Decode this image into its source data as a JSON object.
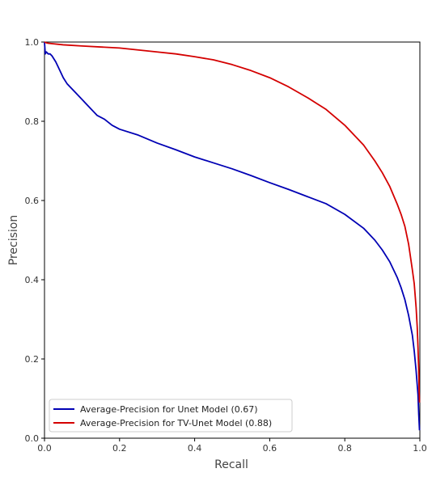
{
  "chart_data": {
    "type": "line",
    "title": "",
    "xlabel": "Recall",
    "ylabel": "Precision",
    "xlim": [
      0,
      1
    ],
    "ylim": [
      0,
      1
    ],
    "grid": false,
    "legend_position": "bottom-left",
    "xticks": [
      "0.0",
      "0.2",
      "0.4",
      "0.6",
      "0.8",
      "1.0"
    ],
    "yticks": [
      "0.0",
      "0.2",
      "0.4",
      "0.6",
      "0.8",
      "1.0"
    ],
    "series": [
      {
        "name": "Average-Precision for Unet Model (0.67)",
        "color": "#0000b4",
        "x": [
          0.0,
          0.002,
          0.005,
          0.01,
          0.015,
          0.02,
          0.03,
          0.04,
          0.05,
          0.06,
          0.08,
          0.1,
          0.12,
          0.14,
          0.16,
          0.18,
          0.2,
          0.25,
          0.3,
          0.35,
          0.4,
          0.45,
          0.5,
          0.55,
          0.6,
          0.65,
          0.7,
          0.75,
          0.8,
          0.85,
          0.88,
          0.9,
          0.92,
          0.94,
          0.95,
          0.96,
          0.97,
          0.98,
          0.985,
          0.99,
          0.995,
          0.997,
          0.999
        ],
        "y": [
          1.0,
          0.97,
          0.975,
          0.97,
          0.97,
          0.965,
          0.95,
          0.93,
          0.91,
          0.895,
          0.875,
          0.855,
          0.835,
          0.815,
          0.805,
          0.79,
          0.78,
          0.765,
          0.745,
          0.728,
          0.71,
          0.695,
          0.68,
          0.663,
          0.645,
          0.628,
          0.61,
          0.592,
          0.565,
          0.53,
          0.5,
          0.475,
          0.445,
          0.405,
          0.38,
          0.35,
          0.31,
          0.26,
          0.22,
          0.17,
          0.11,
          0.06,
          0.02
        ]
      },
      {
        "name": "Average-Precision for TV-Unet Model (0.88)",
        "color": "#d40000",
        "x": [
          0.0,
          0.005,
          0.01,
          0.05,
          0.1,
          0.2,
          0.3,
          0.35,
          0.4,
          0.45,
          0.5,
          0.55,
          0.6,
          0.65,
          0.7,
          0.75,
          0.8,
          0.85,
          0.88,
          0.9,
          0.92,
          0.94,
          0.95,
          0.96,
          0.97,
          0.98,
          0.985,
          0.99,
          0.993,
          0.995,
          0.997,
          0.998,
          0.999
        ],
        "y": [
          1.0,
          0.998,
          0.997,
          0.993,
          0.99,
          0.985,
          0.975,
          0.97,
          0.963,
          0.955,
          0.943,
          0.928,
          0.91,
          0.887,
          0.86,
          0.83,
          0.79,
          0.74,
          0.7,
          0.67,
          0.635,
          0.59,
          0.565,
          0.535,
          0.49,
          0.425,
          0.39,
          0.33,
          0.28,
          0.23,
          0.17,
          0.12,
          0.09
        ]
      }
    ]
  }
}
